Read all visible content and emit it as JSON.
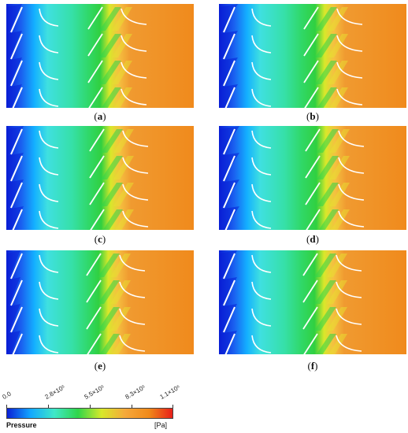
{
  "panels": [
    {
      "label": "a"
    },
    {
      "label": "b"
    },
    {
      "label": "c"
    },
    {
      "label": "d"
    },
    {
      "label": "e"
    },
    {
      "label": "f"
    }
  ],
  "legend": {
    "title": "Pressure",
    "unit": "[Pa]",
    "ticks": [
      "0.0",
      "2.8×10⁵",
      "5.5×10⁵",
      "8.3×10⁵",
      "1.1×10⁶"
    ],
    "colors": [
      "#0a1fd6",
      "#13a8ff",
      "#3fe8c8",
      "#2fd64a",
      "#d8e82a",
      "#f5a83a",
      "#f08a1a",
      "#e8201a"
    ]
  }
}
